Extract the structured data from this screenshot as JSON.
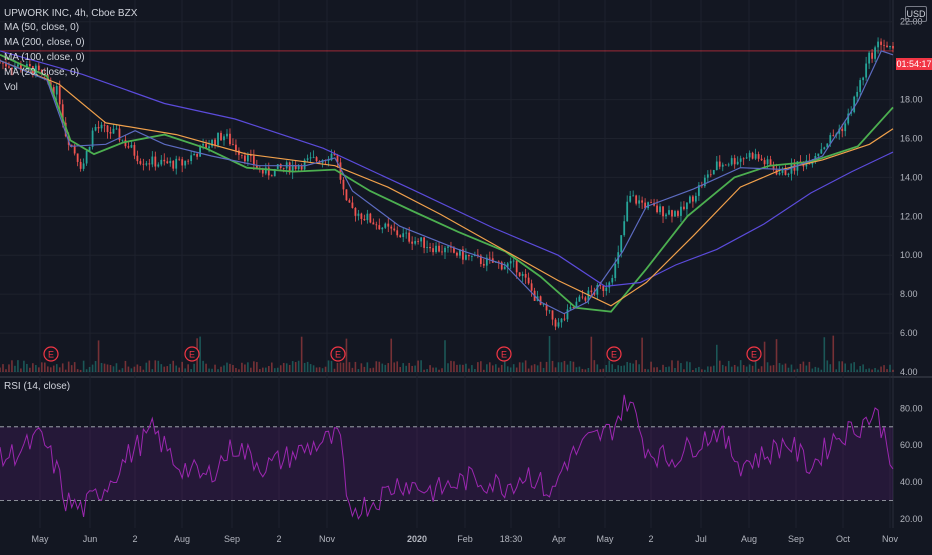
{
  "header": {
    "symbol": "UPWORK INC, 4h, Cboe BZX",
    "currency": "USD",
    "indicators": [
      "MA (50, close, 0)",
      "MA (200, close, 0)",
      "MA (100, close, 0)",
      "MA (20, close, 0)",
      "Vol"
    ],
    "rsi_label": "RSI (14, close)",
    "countdown": "01:54:17"
  },
  "colors": {
    "background": "#131722",
    "up": "#26a69a",
    "down": "#ef5350",
    "ma50": "#4caf50",
    "ma200": "#5b4bdb",
    "ma100": "#f0a04b",
    "ma20": "#5c6bc0",
    "rsi": "#9c27b0",
    "earnings": "#f23645"
  },
  "chart_data": [
    {
      "type": "candlestick",
      "ylim": [
        4,
        22.5
      ],
      "yticks": [
        "4.00",
        "6.00",
        "8.00",
        "10.00",
        "12.00",
        "14.00",
        "16.00",
        "18.00",
        "22.00"
      ],
      "xticks": [
        "May",
        "Jun",
        "2",
        "Aug",
        "Sep",
        "2",
        "Nov",
        "2020",
        "Feb",
        "18:30",
        "Apr",
        "May",
        "2",
        "Jul",
        "Aug",
        "Sep",
        "Oct",
        "Nov"
      ],
      "price_line": 20.5,
      "earnings_markers": [
        "E",
        "E",
        "E",
        "E",
        "E",
        "E"
      ],
      "close_path": [
        [
          0,
          19.9
        ],
        [
          6,
          19.5
        ],
        [
          10,
          18.3
        ],
        [
          11,
          16.4
        ],
        [
          14,
          14.5
        ],
        [
          16,
          16.6
        ],
        [
          20,
          16.2
        ],
        [
          24,
          14.9
        ],
        [
          28,
          14.7
        ],
        [
          31,
          14.7
        ],
        [
          33,
          15.2
        ],
        [
          38,
          16.2
        ],
        [
          41,
          15.3
        ],
        [
          45,
          14.2
        ],
        [
          50,
          14.6
        ],
        [
          55,
          15.0
        ],
        [
          57,
          15.3
        ],
        [
          59,
          12.5
        ],
        [
          66,
          11.3
        ],
        [
          74,
          10.4
        ],
        [
          82,
          9.7
        ],
        [
          88,
          9.4
        ],
        [
          92,
          7.4
        ],
        [
          95,
          6.4
        ],
        [
          99,
          7.8
        ],
        [
          103,
          8.4
        ],
        [
          105,
          9.6
        ],
        [
          107,
          13.0
        ],
        [
          112,
          12.3
        ],
        [
          116,
          12.2
        ],
        [
          119,
          13.5
        ],
        [
          122,
          14.6
        ],
        [
          128,
          15.2
        ],
        [
          133,
          14.2
        ],
        [
          138,
          15.0
        ],
        [
          144,
          16.8
        ],
        [
          148,
          20.2
        ],
        [
          150,
          21.0
        ],
        [
          152,
          20.4
        ]
      ],
      "series": [
        {
          "name": "MA (50, close, 0)",
          "points": [
            [
              0,
              20.3
            ],
            [
              8,
              19.2
            ],
            [
              12,
              15.9
            ],
            [
              16,
              15.2
            ],
            [
              21,
              15.8
            ],
            [
              28,
              16.2
            ],
            [
              35,
              15.5
            ],
            [
              42,
              14.5
            ],
            [
              50,
              14.3
            ],
            [
              57,
              14.4
            ],
            [
              63,
              13.3
            ],
            [
              70,
              12.3
            ],
            [
              78,
              11.2
            ],
            [
              86,
              10.2
            ],
            [
              92,
              8.9
            ],
            [
              98,
              7.3
            ],
            [
              104,
              7.1
            ],
            [
              110,
              9.3
            ],
            [
              117,
              12.0
            ],
            [
              125,
              14.0
            ],
            [
              131,
              14.6
            ],
            [
              138,
              14.8
            ],
            [
              146,
              15.6
            ],
            [
              152,
              17.6
            ]
          ]
        },
        {
          "name": "MA (200, close, 0)",
          "points": [
            [
              0,
              20.5
            ],
            [
              14,
              19.3
            ],
            [
              28,
              17.8
            ],
            [
              40,
              17.0
            ],
            [
              55,
              15.5
            ],
            [
              70,
              13.4
            ],
            [
              84,
              11.4
            ],
            [
              95,
              10.0
            ],
            [
              103,
              8.4
            ],
            [
              109,
              8.6
            ],
            [
              115,
              9.5
            ],
            [
              122,
              10.3
            ],
            [
              130,
              11.6
            ],
            [
              138,
              13.2
            ],
            [
              145,
              14.3
            ],
            [
              152,
              15.3
            ]
          ]
        },
        {
          "name": "MA (100, close, 0)",
          "points": [
            [
              0,
              20.0
            ],
            [
              10,
              18.8
            ],
            [
              18,
              16.8
            ],
            [
              30,
              16.2
            ],
            [
              42,
              15.2
            ],
            [
              57,
              14.6
            ],
            [
              66,
              13.5
            ],
            [
              75,
              12.1
            ],
            [
              85,
              10.4
            ],
            [
              95,
              8.7
            ],
            [
              104,
              7.4
            ],
            [
              110,
              8.6
            ],
            [
              118,
              11.0
            ],
            [
              126,
              13.5
            ],
            [
              133,
              14.4
            ],
            [
              140,
              14.9
            ],
            [
              148,
              15.7
            ],
            [
              152,
              16.5
            ]
          ]
        },
        {
          "name": "MA (20, close, 0)",
          "points": [
            [
              0,
              20.0
            ],
            [
              8,
              19.0
            ],
            [
              12,
              15.6
            ],
            [
              18,
              15.7
            ],
            [
              23,
              16.4
            ],
            [
              28,
              15.7
            ],
            [
              36,
              15.1
            ],
            [
              44,
              14.6
            ],
            [
              52,
              14.6
            ],
            [
              57,
              15.0
            ],
            [
              60,
              13.3
            ],
            [
              68,
              11.5
            ],
            [
              78,
              10.3
            ],
            [
              86,
              9.5
            ],
            [
              92,
              7.6
            ],
            [
              96,
              7.0
            ],
            [
              100,
              7.6
            ],
            [
              106,
              10.2
            ],
            [
              110,
              12.5
            ],
            [
              118,
              13.4
            ],
            [
              126,
              14.5
            ],
            [
              134,
              14.4
            ],
            [
              140,
              15.1
            ],
            [
              146,
              17.9
            ],
            [
              150,
              20.5
            ],
            [
              152,
              20.3
            ]
          ]
        }
      ]
    },
    {
      "type": "line",
      "ylim": [
        15,
        90
      ],
      "yticks": [
        "20.00",
        "40.00",
        "60.00",
        "80.00"
      ],
      "bands": [
        30,
        70
      ],
      "series": [
        {
          "name": "RSI (14, close)",
          "points": [
            [
              0,
              52
            ],
            [
              4,
              58
            ],
            [
              7,
              65
            ],
            [
              10,
              44
            ],
            [
              11,
              30
            ],
            [
              14,
              25
            ],
            [
              18,
              38
            ],
            [
              22,
              55
            ],
            [
              26,
              68
            ],
            [
              30,
              50
            ],
            [
              35,
              42
            ],
            [
              40,
              60
            ],
            [
              45,
              48
            ],
            [
              50,
              55
            ],
            [
              55,
              62
            ],
            [
              58,
              64
            ],
            [
              59,
              25
            ],
            [
              63,
              28
            ],
            [
              68,
              40
            ],
            [
              74,
              35
            ],
            [
              80,
              42
            ],
            [
              86,
              38
            ],
            [
              90,
              45
            ],
            [
              94,
              33
            ],
            [
              96,
              50
            ],
            [
              100,
              62
            ],
            [
              104,
              68
            ],
            [
              107,
              86
            ],
            [
              110,
              58
            ],
            [
              114,
              52
            ],
            [
              118,
              60
            ],
            [
              122,
              68
            ],
            [
              126,
              50
            ],
            [
              130,
              54
            ],
            [
              134,
              62
            ],
            [
              138,
              48
            ],
            [
              142,
              64
            ],
            [
              146,
              70
            ],
            [
              149,
              78
            ],
            [
              151,
              62
            ],
            [
              152,
              50
            ]
          ]
        }
      ]
    }
  ]
}
